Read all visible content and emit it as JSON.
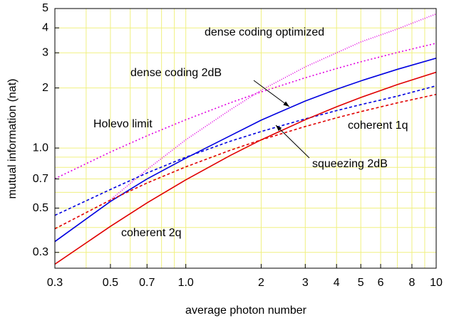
{
  "chart_data": {
    "type": "line",
    "x_label": "average photon number",
    "y_label": "mutual information (nat)",
    "x": [
      0.3,
      0.5,
      0.7,
      1,
      1.5,
      2,
      3,
      4,
      5,
      7,
      10
    ],
    "series": [
      {
        "name": "Holevo limit",
        "color": "#e000e0",
        "dash": "2,3",
        "values": [
          0.702,
          0.955,
          1.152,
          1.386,
          1.683,
          1.91,
          2.249,
          2.502,
          2.704,
          3.012,
          3.35
        ]
      },
      {
        "name": "dense coding optimized",
        "color": "#e000e0",
        "dash": "1,2",
        "values": [
          null,
          0.55,
          0.78,
          1.1,
          1.55,
          1.95,
          2.55,
          3.0,
          3.4,
          3.95,
          4.7
        ]
      },
      {
        "name": "dense coding 2dB",
        "color": "#0000e0",
        "dash": "",
        "values": [
          0.34,
          0.54,
          0.7,
          0.89,
          1.15,
          1.38,
          1.72,
          1.97,
          2.17,
          2.48,
          2.82
        ]
      },
      {
        "name": "squeezing 2dB",
        "color": "#0000e0",
        "dash": "4,3",
        "values": [
          0.46,
          0.62,
          0.75,
          0.9,
          1.08,
          1.21,
          1.4,
          1.54,
          1.65,
          1.82,
          2.05
        ]
      },
      {
        "name": "coherent 1q",
        "color": "#e00000",
        "dash": "4,3",
        "values": [
          0.394,
          0.549,
          0.668,
          0.805,
          0.973,
          1.099,
          1.282,
          1.417,
          1.522,
          1.684,
          1.857
        ]
      },
      {
        "name": "coherent 2q",
        "color": "#e00000",
        "dash": "",
        "values": [
          0.262,
          0.405,
          0.531,
          0.693,
          0.916,
          1.099,
          1.386,
          1.609,
          1.792,
          2.079,
          2.398
        ]
      }
    ],
    "xlog": true,
    "ylog": true,
    "xlim": [
      0.3,
      10
    ],
    "ylim": [
      0.25,
      5
    ],
    "xticks": [
      0.3,
      0.5,
      0.7,
      {
        "value": 1,
        "label": "1.0"
      },
      2,
      3,
      4,
      5,
      6,
      8,
      10
    ],
    "yticks": [
      0.3,
      0.5,
      0.7,
      {
        "value": 1,
        "label": "1.0"
      },
      2,
      3,
      4,
      5
    ],
    "xgrid": [
      0.3,
      0.4,
      0.5,
      0.6,
      0.7,
      0.8,
      0.9,
      1,
      2,
      3,
      4,
      5,
      6,
      7,
      8,
      9,
      10
    ],
    "ygrid": [
      0.3,
      0.4,
      0.5,
      0.6,
      0.7,
      0.8,
      0.9,
      1,
      2,
      3,
      4,
      5
    ],
    "grid_color": "#f0f080"
  }
}
